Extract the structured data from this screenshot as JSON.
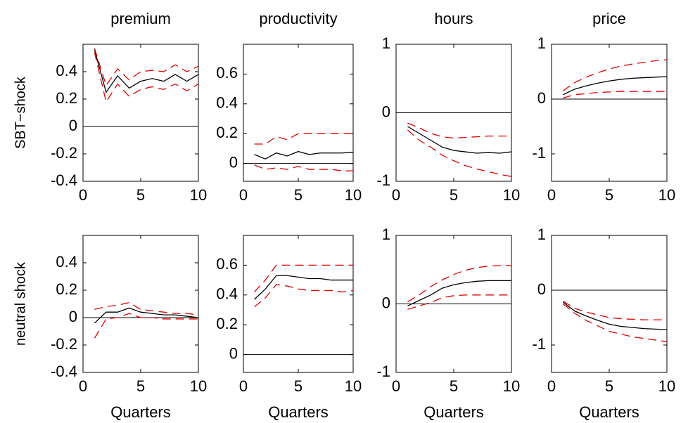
{
  "chart_data": [
    {
      "type": "line",
      "title": "premium",
      "ylabel": "SBT−shock",
      "x": [
        1,
        2,
        3,
        4,
        5,
        6,
        7,
        8,
        9,
        10
      ],
      "series": [
        {
          "color": "#000000",
          "style": "solid",
          "values": [
            0.56,
            0.25,
            0.37,
            0.28,
            0.33,
            0.35,
            0.33,
            0.38,
            0.33,
            0.38
          ]
        },
        {
          "color": "#e00000",
          "style": "dashed",
          "values": [
            0.57,
            0.3,
            0.42,
            0.34,
            0.4,
            0.41,
            0.4,
            0.45,
            0.4,
            0.44
          ]
        },
        {
          "color": "#e00000",
          "style": "dashed",
          "values": [
            0.54,
            0.18,
            0.31,
            0.22,
            0.27,
            0.29,
            0.27,
            0.31,
            0.26,
            0.31
          ]
        }
      ],
      "hline": 0,
      "xlim": [
        0,
        10
      ],
      "xticks": [
        0,
        5,
        10
      ],
      "ylim": [
        -0.4,
        0.6
      ],
      "yticks": [
        -0.4,
        -0.2,
        0,
        0.2,
        0.4
      ]
    },
    {
      "type": "line",
      "title": "productivity",
      "x": [
        1,
        2,
        3,
        4,
        5,
        6,
        7,
        8,
        9,
        10
      ],
      "series": [
        {
          "color": "#000000",
          "style": "solid",
          "values": [
            0.06,
            0.03,
            0.07,
            0.05,
            0.08,
            0.06,
            0.07,
            0.07,
            0.07,
            0.075
          ]
        },
        {
          "color": "#e00000",
          "style": "dashed",
          "values": [
            0.13,
            0.13,
            0.18,
            0.16,
            0.2,
            0.2,
            0.2,
            0.2,
            0.2,
            0.2
          ]
        },
        {
          "color": "#e00000",
          "style": "dashed",
          "values": [
            -0.01,
            -0.04,
            -0.03,
            -0.04,
            -0.02,
            -0.04,
            -0.04,
            -0.04,
            -0.05,
            -0.05
          ]
        }
      ],
      "hline": 0,
      "xlim": [
        0,
        10
      ],
      "xticks": [
        0,
        5,
        10
      ],
      "ylim": [
        -0.12,
        0.8
      ],
      "yticks": [
        0,
        0.2,
        0.4,
        0.6
      ]
    },
    {
      "type": "line",
      "title": "hours",
      "x": [
        1,
        2,
        3,
        4,
        5,
        6,
        7,
        8,
        9,
        10
      ],
      "series": [
        {
          "color": "#000000",
          "style": "solid",
          "values": [
            -0.2,
            -0.3,
            -0.4,
            -0.5,
            -0.55,
            -0.57,
            -0.59,
            -0.58,
            -0.59,
            -0.57
          ]
        },
        {
          "color": "#e00000",
          "style": "dashed",
          "values": [
            -0.15,
            -0.22,
            -0.3,
            -0.35,
            -0.37,
            -0.36,
            -0.35,
            -0.34,
            -0.34,
            -0.34
          ]
        },
        {
          "color": "#e00000",
          "style": "dashed",
          "values": [
            -0.25,
            -0.4,
            -0.5,
            -0.62,
            -0.7,
            -0.77,
            -0.82,
            -0.86,
            -0.9,
            -0.93
          ]
        }
      ],
      "hline": 0,
      "xlim": [
        0,
        10
      ],
      "xticks": [
        0,
        5,
        10
      ],
      "ylim": [
        -1,
        1
      ],
      "yticks": [
        -1,
        0,
        1
      ]
    },
    {
      "type": "line",
      "title": "price",
      "x": [
        1,
        2,
        3,
        4,
        5,
        6,
        7,
        8,
        9,
        10
      ],
      "series": [
        {
          "color": "#000000",
          "style": "solid",
          "values": [
            0.08,
            0.18,
            0.24,
            0.29,
            0.33,
            0.36,
            0.38,
            0.39,
            0.4,
            0.41
          ]
        },
        {
          "color": "#e00000",
          "style": "dashed",
          "values": [
            0.15,
            0.3,
            0.4,
            0.48,
            0.55,
            0.6,
            0.64,
            0.67,
            0.7,
            0.72
          ]
        },
        {
          "color": "#e00000",
          "style": "dashed",
          "values": [
            0.02,
            0.08,
            0.1,
            0.12,
            0.13,
            0.14,
            0.14,
            0.14,
            0.14,
            0.14
          ]
        }
      ],
      "hline": 0,
      "xlim": [
        0,
        10
      ],
      "xticks": [
        0,
        5,
        10
      ],
      "ylim": [
        -1.5,
        1
      ],
      "yticks": [
        -1,
        0,
        1
      ]
    },
    {
      "type": "line",
      "ylabel": "neutral shock",
      "xlabel": "Quarters",
      "x": [
        1,
        2,
        3,
        4,
        5,
        6,
        7,
        8,
        9,
        10
      ],
      "series": [
        {
          "color": "#000000",
          "style": "solid",
          "values": [
            -0.04,
            0.04,
            0.04,
            0.07,
            0.04,
            0.03,
            0.02,
            0.02,
            0.01,
            0.0
          ]
        },
        {
          "color": "#e00000",
          "style": "dashed",
          "values": [
            0.06,
            0.08,
            0.09,
            0.11,
            0.06,
            0.05,
            0.04,
            0.03,
            0.03,
            0.02
          ]
        },
        {
          "color": "#e00000",
          "style": "dashed",
          "values": [
            -0.15,
            -0.01,
            0.0,
            0.03,
            0.0,
            0.0,
            -0.01,
            -0.01,
            -0.01,
            -0.01
          ]
        }
      ],
      "hline": 0,
      "xlim": [
        0,
        10
      ],
      "xticks": [
        0,
        5,
        10
      ],
      "ylim": [
        -0.4,
        0.6
      ],
      "yticks": [
        -0.4,
        -0.2,
        0,
        0.2,
        0.4
      ]
    },
    {
      "type": "line",
      "xlabel": "Quarters",
      "x": [
        1,
        2,
        3,
        4,
        5,
        6,
        7,
        8,
        9,
        10
      ],
      "series": [
        {
          "color": "#000000",
          "style": "solid",
          "values": [
            0.37,
            0.44,
            0.53,
            0.53,
            0.52,
            0.51,
            0.51,
            0.5,
            0.5,
            0.5
          ]
        },
        {
          "color": "#e00000",
          "style": "dashed",
          "values": [
            0.42,
            0.5,
            0.6,
            0.6,
            0.6,
            0.6,
            0.6,
            0.6,
            0.6,
            0.6
          ]
        },
        {
          "color": "#e00000",
          "style": "dashed",
          "values": [
            0.32,
            0.38,
            0.47,
            0.46,
            0.44,
            0.43,
            0.43,
            0.43,
            0.42,
            0.43
          ]
        }
      ],
      "hline": 0,
      "xlim": [
        0,
        10
      ],
      "xticks": [
        0,
        5,
        10
      ],
      "ylim": [
        -0.12,
        0.8
      ],
      "yticks": [
        0,
        0.2,
        0.4,
        0.6
      ]
    },
    {
      "type": "line",
      "xlabel": "Quarters",
      "x": [
        1,
        2,
        3,
        4,
        5,
        6,
        7,
        8,
        9,
        10
      ],
      "series": [
        {
          "color": "#000000",
          "style": "solid",
          "values": [
            -0.03,
            0.05,
            0.13,
            0.23,
            0.28,
            0.31,
            0.33,
            0.34,
            0.34,
            0.34
          ]
        },
        {
          "color": "#e00000",
          "style": "dashed",
          "values": [
            0.03,
            0.13,
            0.25,
            0.35,
            0.43,
            0.49,
            0.53,
            0.55,
            0.56,
            0.56
          ]
        },
        {
          "color": "#e00000",
          "style": "dashed",
          "values": [
            -0.08,
            -0.03,
            0.02,
            0.09,
            0.12,
            0.13,
            0.13,
            0.13,
            0.13,
            0.13
          ]
        }
      ],
      "hline": 0,
      "xlim": [
        0,
        10
      ],
      "xticks": [
        0,
        5,
        10
      ],
      "ylim": [
        -1,
        1
      ],
      "yticks": [
        -1,
        0,
        1
      ]
    },
    {
      "type": "line",
      "xlabel": "Quarters",
      "x": [
        1,
        2,
        3,
        4,
        5,
        6,
        7,
        8,
        9,
        10
      ],
      "series": [
        {
          "color": "#000000",
          "style": "solid",
          "values": [
            -0.22,
            -0.38,
            -0.47,
            -0.55,
            -0.62,
            -0.66,
            -0.68,
            -0.7,
            -0.71,
            -0.72
          ]
        },
        {
          "color": "#e00000",
          "style": "dashed",
          "values": [
            -0.2,
            -0.33,
            -0.4,
            -0.45,
            -0.5,
            -0.52,
            -0.53,
            -0.54,
            -0.54,
            -0.54
          ]
        },
        {
          "color": "#e00000",
          "style": "dashed",
          "values": [
            -0.25,
            -0.42,
            -0.55,
            -0.65,
            -0.75,
            -0.8,
            -0.85,
            -0.88,
            -0.91,
            -0.94
          ]
        }
      ],
      "hline": 0,
      "xlim": [
        0,
        10
      ],
      "xticks": [
        0,
        5,
        10
      ],
      "ylim": [
        -1.5,
        1
      ],
      "yticks": [
        -1,
        0,
        1
      ]
    }
  ]
}
